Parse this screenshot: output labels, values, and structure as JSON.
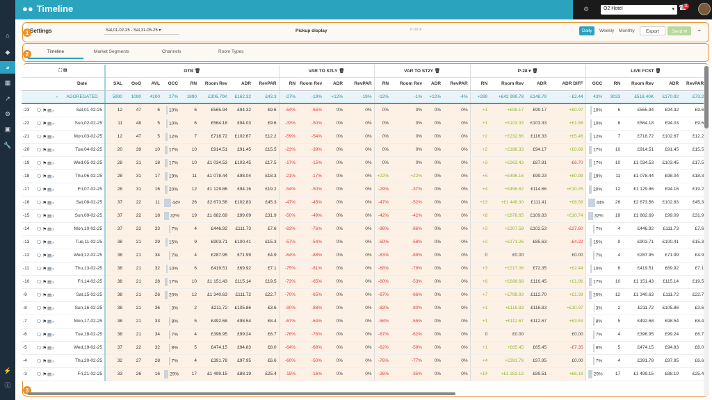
{
  "app": {
    "title": "Timeline"
  },
  "hotel": {
    "selected": "O2 Hotel",
    "badge": "11"
  },
  "settings": {
    "label": "Settings",
    "date_range": "Sat,01-02-25 - Sat,31-05-25",
    "pickup_label": "Pickup display",
    "pickup_value": "P-28",
    "daily": "Daily",
    "weekly": "Weekly",
    "monthly": "Monthly",
    "export": "Export",
    "send": "Send"
  },
  "tabs": [
    "Timeline",
    "Market Segments",
    "Channels",
    "Room Types"
  ],
  "markers": [
    "1",
    "2",
    "3"
  ],
  "groups": {
    "otb": "OTB",
    "var_stly": "VAR TO STLY",
    "var_st2y": "VAR TO ST2Y",
    "pickup": "P-28",
    "live": "LIVE FCST"
  },
  "headers": [
    "Date",
    "SAL",
    "OoO",
    "AVL",
    "OCC",
    "RN",
    "Room Rev",
    "ADR",
    "RevPAR",
    "RN",
    "Room Rev",
    "ADR",
    "RevPAR",
    "RN",
    "Room Rev",
    "ADR",
    "RevPAR",
    "RN",
    "Room Rev",
    "ADR",
    "ADR DIFF",
    "OCC",
    "RN",
    "Room Rev",
    "ADR",
    "RevPAR"
  ],
  "aggregated": {
    "label": "AGGREGATED",
    "vals": [
      "5990",
      "1090",
      "4100",
      "27%",
      "1890",
      "£306.70K",
      "£162.32",
      "£43.3",
      "-27%",
      "-19%",
      "+12%",
      "-19%",
      "-12%",
      "-1%",
      "+12%",
      "-4%",
      "+289",
      "+£42 999.78",
      "£148.79",
      "- £2.44",
      "43%",
      "3033",
      "£518.40K",
      "£170.92",
      "£73.2"
    ]
  },
  "rows": [
    {
      "lead": "-23",
      "date": "Sat,01-02-25",
      "v": [
        "12",
        "47",
        "6",
        "10%",
        "6",
        "£565.94",
        "£94.32",
        "£9.6",
        "-64%",
        "-65%",
        "0%",
        "0%",
        "0%",
        "0%",
        "0%",
        "0%",
        "+1",
        "+£99.17",
        "£99.17",
        "+£0.97",
        "10%",
        "6",
        "£565.94",
        "£94.32",
        "£9.6"
      ]
    },
    {
      "lead": "-22",
      "date": "Sun,02-02-25",
      "v": [
        "11",
        "48",
        "5",
        "10%",
        "6",
        "£564.18",
        "£94.03",
        "£9.6",
        "-33%",
        "-50%",
        "0%",
        "0%",
        "0%",
        "0%",
        "0%",
        "0%",
        "+1",
        "+£103.33",
        "£103.33",
        "+£1.86",
        "10%",
        "6",
        "£564.18",
        "£94.03",
        "£9.6"
      ]
    },
    {
      "lead": "-21",
      "date": "Mon,03-02-25",
      "v": [
        "12",
        "47",
        "5",
        "12%",
        "7",
        "£718.72",
        "£102.67",
        "£12.2",
        "-59%",
        "-54%",
        "0%",
        "0%",
        "0%",
        "0%",
        "0%",
        "0%",
        "+2",
        "+£232.66",
        "£116.33",
        "+£5.46",
        "12%",
        "7",
        "£718.72",
        "£102.67",
        "£12.2"
      ]
    },
    {
      "lead": "-20",
      "date": "Tue,04-02-25",
      "v": [
        "20",
        "39",
        "10",
        "17%",
        "10",
        "£914.51",
        "£91.45",
        "£15.5",
        "-23%",
        "-39%",
        "0%",
        "0%",
        "0%",
        "0%",
        "0%",
        "0%",
        "+2",
        "+£188.33",
        "£94.17",
        "+£0.68",
        "17%",
        "10",
        "£914.51",
        "£91.45",
        "£15.5"
      ]
    },
    {
      "lead": "-19",
      "date": "Wed,05-02-25",
      "v": [
        "28",
        "31",
        "18",
        "17%",
        "10",
        "£1 034.53",
        "£103.45",
        "£17.5",
        "-17%",
        "-15%",
        "0%",
        "0%",
        "0%",
        "0%",
        "0%",
        "0%",
        "+3",
        "+£263.43",
        "£87.81",
        "-£6.70",
        "17%",
        "10",
        "£1 034.53",
        "£103.45",
        "£17.5"
      ]
    },
    {
      "lead": "-18",
      "date": "Thu,06-02-25",
      "v": [
        "28",
        "31",
        "17",
        "19%",
        "11",
        "£1 078.44",
        "£98.04",
        "£18.3",
        "-21%",
        "-17%",
        "0%",
        "0%",
        "+22%",
        "+22%",
        "0%",
        "0%",
        "+5",
        "+£496.16",
        "£99.23",
        "+£0.99",
        "19%",
        "11",
        "£1 078.44",
        "£98.04",
        "£18.3"
      ]
    },
    {
      "lead": "-17",
      "date": "Fri,07-02-25",
      "v": [
        "28",
        "31",
        "16",
        "20%",
        "12",
        "£1 129.86",
        "£94.16",
        "£19.2",
        "-54%",
        "-50%",
        "0%",
        "0%",
        "-29%",
        "-37%",
        "0%",
        "0%",
        "+4",
        "+£458.62",
        "£114.66",
        "+£10.25",
        "20%",
        "12",
        "£1 129.86",
        "£94.16",
        "£19.2"
      ]
    },
    {
      "lead": "-16",
      "date": "Sat,08-02-25",
      "v": [
        "37",
        "22",
        "11",
        "44%",
        "26",
        "£2 673.56",
        "£102.83",
        "£45.3",
        "-47%",
        "-45%",
        "0%",
        "0%",
        "-47%",
        "-52%",
        "0%",
        "0%",
        "+13",
        "+£1 448.30",
        "£111.41",
        "+£8.58",
        "44%",
        "26",
        "£2 673.56",
        "£102.83",
        "£45.3"
      ]
    },
    {
      "lead": "-15",
      "date": "Sun,09-02-25",
      "v": [
        "37",
        "22",
        "18",
        "32%",
        "19",
        "£1 882.69",
        "£99.09",
        "£31.9",
        "-50%",
        "-49%",
        "0%",
        "0%",
        "-42%",
        "-42%",
        "0%",
        "0%",
        "+8",
        "+£878.65",
        "£109.83",
        "+£10.74",
        "32%",
        "19",
        "£1 882.69",
        "£99.09",
        "£31.9"
      ]
    },
    {
      "lead": "-14",
      "date": "Mon,10-02-25",
      "v": [
        "37",
        "22",
        "33",
        "7%",
        "4",
        "£446.92",
        "£111.73",
        "£7.6",
        "-83%",
        "-76%",
        "0%",
        "0%",
        "-88%",
        "-86%",
        "0%",
        "0%",
        "+3",
        "+£307.59",
        "£102.53",
        "-£27.60",
        "7%",
        "4",
        "£446.92",
        "£111.73",
        "£7.6"
      ]
    },
    {
      "lead": "-13",
      "date": "Tue,11-02-25",
      "v": [
        "38",
        "21",
        "29",
        "15%",
        "9",
        "£903.71",
        "£100.41",
        "£15.3",
        "-57%",
        "-54%",
        "0%",
        "0%",
        "-50%",
        "-58%",
        "0%",
        "0%",
        "+2",
        "+£171.26",
        "£85.63",
        "-£4.22",
        "15%",
        "9",
        "£903.71",
        "£100.41",
        "£15.3"
      ]
    },
    {
      "lead": "-12",
      "date": "Wed,12-02-25",
      "v": [
        "38",
        "21",
        "34",
        "7%",
        "4",
        "£287.95",
        "£71.99",
        "£4.9",
        "-64%",
        "-88%",
        "0%",
        "0%",
        "-83%",
        "-89%",
        "0%",
        "0%",
        "0",
        "£0.00",
        "",
        "£0.00",
        "7%",
        "4",
        "£287.95",
        "£71.99",
        "£4.9"
      ]
    },
    {
      "lead": "-11",
      "date": "Thu,13-02-25",
      "v": [
        "38",
        "21",
        "32",
        "10%",
        "6",
        "£419.51",
        "£69.92",
        "£7.1",
        "-75%",
        "-81%",
        "0%",
        "0%",
        "-68%",
        "-79%",
        "0%",
        "0%",
        "+3",
        "+£217.06",
        "£72.35",
        "+£2.44",
        "10%",
        "6",
        "£419.51",
        "£69.92",
        "£7.1"
      ]
    },
    {
      "lead": "-10",
      "date": "Fri,14-02-25",
      "v": [
        "38",
        "21",
        "28",
        "17%",
        "10",
        "£1 151.43",
        "£115.14",
        "£19.5",
        "-73%",
        "-65%",
        "0%",
        "0%",
        "-60%",
        "-53%",
        "0%",
        "0%",
        "+6",
        "+£698.68",
        "£116.45",
        "+£1.96",
        "17%",
        "10",
        "£1 151.43",
        "£115.14",
        "£19.5"
      ]
    },
    {
      "lead": "-9",
      "date": "Sat,15-02-25",
      "v": [
        "38",
        "21",
        "26",
        "20%",
        "12",
        "£1 340.63",
        "£111.72",
        "£22.7",
        "-70%",
        "-65%",
        "0%",
        "0%",
        "-67%",
        "-66%",
        "0%",
        "0%",
        "+7",
        "+£788.93",
        "£112.70",
        "+£1.38",
        "20%",
        "12",
        "£1 340.63",
        "£111.72",
        "£22.7"
      ]
    },
    {
      "lead": "-8",
      "date": "Sun,16-02-25",
      "v": [
        "38",
        "21",
        "36",
        "3%",
        "2",
        "£211.72",
        "£105.86",
        "£3.6",
        "-90%",
        "-88%",
        "0%",
        "0%",
        "-83%",
        "-80%",
        "0%",
        "0%",
        "+1",
        "+£116.83",
        "£116.83",
        "+£10.97",
        "3%",
        "2",
        "£211.72",
        "£105.86",
        "£3.6"
      ]
    },
    {
      "lead": "-7",
      "date": "Mon,17-02-25",
      "v": [
        "38",
        "21",
        "33",
        "8%",
        "5",
        "£492.68",
        "£98.54",
        "£8.4",
        "-67%",
        "-64%",
        "0%",
        "0%",
        "-58%",
        "-55%",
        "0%",
        "0%",
        "+1",
        "+£112.67",
        "£112.67",
        "+£3.53",
        "8%",
        "5",
        "£492.68",
        "£98.54",
        "£8.4"
      ]
    },
    {
      "lead": "-6",
      "date": "Tue,18-02-25",
      "v": [
        "38",
        "21",
        "34",
        "7%",
        "4",
        "£396.95",
        "£99.24",
        "£6.7",
        "-78%",
        "-76%",
        "0%",
        "0%",
        "-67%",
        "-62%",
        "0%",
        "0%",
        "0",
        "£0.00",
        "",
        "£0.00",
        "7%",
        "4",
        "£396.95",
        "£99.24",
        "£6.7"
      ]
    },
    {
      "lead": "-5",
      "date": "Wed,19-02-25",
      "v": [
        "37",
        "22",
        "32",
        "8%",
        "5",
        "£474.15",
        "£94.83",
        "£8.0",
        "-64%",
        "-68%",
        "0%",
        "0%",
        "-62%",
        "-59%",
        "0%",
        "0%",
        "+1",
        "+£65.45",
        "£65.45",
        "-£7.35",
        "8%",
        "5",
        "£474.15",
        "£94.83",
        "£8.0"
      ]
    },
    {
      "lead": "-4",
      "date": "Thu,20-02-25",
      "v": [
        "32",
        "27",
        "28",
        "7%",
        "4",
        "£391.78",
        "£97.95",
        "£6.6",
        "-60%",
        "-50%",
        "0%",
        "0%",
        "-76%",
        "-77%",
        "0%",
        "0%",
        "+4",
        "+£391.78",
        "£97.95",
        "£0.00",
        "7%",
        "4",
        "£391.78",
        "£97.95",
        "£6.6"
      ]
    },
    {
      "lead": "-3",
      "date": "Fri,21-02-25",
      "v": [
        "33",
        "26",
        "16",
        "29%",
        "17",
        "£1 499.15",
        "£88.19",
        "£25.4",
        "-15%",
        "-16%",
        "0%",
        "0%",
        "-26%",
        "-35%",
        "0%",
        "0%",
        "+14",
        "+£1 253.12",
        "£89.51",
        "+£6.18",
        "29%",
        "17",
        "£1 499.15",
        "£88.19",
        "£25.4"
      ]
    }
  ]
}
